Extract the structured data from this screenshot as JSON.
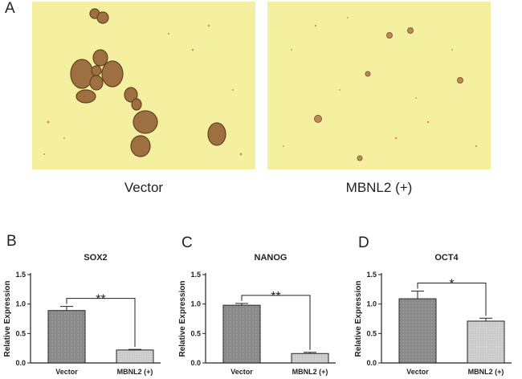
{
  "figure": {
    "panel_a": {
      "letter": "A",
      "images": [
        {
          "label": "Vector"
        },
        {
          "label": "MBNL2 (+)"
        }
      ]
    },
    "panels": [
      {
        "letter": "B"
      },
      {
        "letter": "C"
      },
      {
        "letter": "D"
      }
    ]
  },
  "colors": {
    "micro_background": "#f4f0a0",
    "sphere_fill": "#9a6a3c",
    "bar_vector": "#8a8a8a",
    "bar_mbnl2": "#c8c8c8",
    "axis": "#222222"
  },
  "chart_data": [
    {
      "type": "bar",
      "title": "SOX2",
      "ylabel": "Relative Expression",
      "categories": [
        "Vector",
        "MBNL2 (+)"
      ],
      "values": [
        0.89,
        0.22
      ],
      "errors": [
        0.07,
        0.01
      ],
      "ylim": [
        0,
        1.5
      ],
      "yticks": [
        "0.0",
        "0.5",
        "1.0",
        "1.5"
      ],
      "significance": "**"
    },
    {
      "type": "bar",
      "title": "NANOG",
      "ylabel": "Relative Expression",
      "categories": [
        "Vector",
        "MBNL2 (+)"
      ],
      "values": [
        0.98,
        0.16
      ],
      "errors": [
        0.03,
        0.02
      ],
      "ylim": [
        0,
        1.5
      ],
      "yticks": [
        "0.0",
        "0.5",
        "1.0",
        "1.5"
      ],
      "significance": "**"
    },
    {
      "type": "bar",
      "title": "OCT4",
      "ylabel": "Relative Expression",
      "categories": [
        "Vector",
        "MBNL2 (+)"
      ],
      "values": [
        1.09,
        0.71
      ],
      "errors": [
        0.13,
        0.05
      ],
      "ylim": [
        0,
        1.5
      ],
      "yticks": [
        "0.0",
        "0.5",
        "1.0",
        "1.5"
      ],
      "significance": "*"
    }
  ]
}
